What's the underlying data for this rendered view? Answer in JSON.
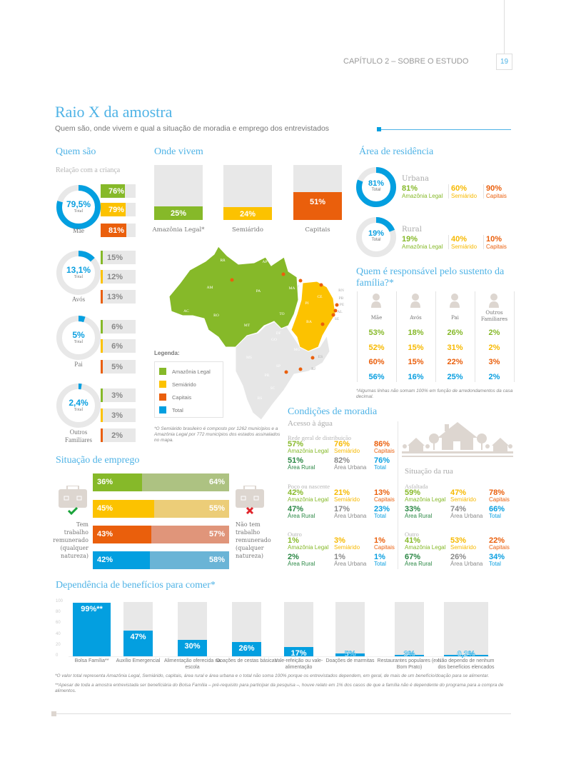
{
  "header": {
    "chapter": "CAPÍTULO 2 – SOBRE O ESTUDO",
    "page": "19"
  },
  "title": "Raio X da amostra",
  "subtitle": "Quem são, onde vivem e qual a situação de moradia e emprego dos entrevistados",
  "colors": {
    "amazonia": "#86b929",
    "semiarido": "#fcc200",
    "capitais": "#ea5f0c",
    "total": "#039fe0",
    "rural": "#2a8744",
    "urbana": "#8a8a8a",
    "accent": "#4fb3e6"
  },
  "quem_sao": {
    "title": "Quem são",
    "subtitle": "Relação com a criança",
    "total_label": "Total",
    "groups": [
      {
        "label": "Mãe",
        "total": "79,5%",
        "total_value": 79.5,
        "bars": [
          "76%",
          "79%",
          "81%"
        ],
        "values": [
          76,
          79,
          81
        ]
      },
      {
        "label": "Avós",
        "total": "13,1%",
        "total_value": 13.1,
        "bars": [
          "15%",
          "12%",
          "13%"
        ],
        "values": [
          15,
          12,
          13
        ]
      },
      {
        "label": "Pai",
        "total": "5%",
        "total_value": 5,
        "bars": [
          "6%",
          "6%",
          "5%"
        ],
        "values": [
          6,
          6,
          5
        ]
      },
      {
        "label": "Outros Familiares",
        "total": "2,4%",
        "total_value": 2.4,
        "bars": [
          "3%",
          "3%",
          "2%"
        ],
        "values": [
          3,
          3,
          2
        ]
      }
    ]
  },
  "onde_vivem": {
    "title": "Onde vivem",
    "bars": [
      {
        "label": "Amazônia Legal*",
        "value_label": "25%",
        "value": 25
      },
      {
        "label": "Semiárido",
        "value_label": "24%",
        "value": 24
      },
      {
        "label": "Capitais",
        "value_label": "51%",
        "value": 51
      }
    ],
    "legend_title": "Legenda:",
    "legend": [
      "Amazônia Legal",
      "Semiárido",
      "Capitais",
      "Total"
    ],
    "states": {
      "green": [
        "RR",
        "AP",
        "AM",
        "PA",
        "MA",
        "AC",
        "RO",
        "TO",
        "MT"
      ],
      "yellow": [
        "CE",
        "PI",
        "BA"
      ],
      "gray": [
        "RN",
        "PB",
        "PE",
        "AL",
        "SE",
        "DF",
        "GO",
        "MG",
        "ES",
        "RJ",
        "MS",
        "SP",
        "PR",
        "SC",
        "RS"
      ]
    },
    "footnote": "*O Semiárido brasileiro é composto por 1262 municípios e a Amazônia Legal por 772 municípios dos estados assinalados no mapa."
  },
  "residencia": {
    "title": "Área de residência",
    "total_label": "Total",
    "rows": [
      {
        "label": "Urbana",
        "total": "81%",
        "total_value": 81,
        "values": [
          "81%",
          "60%",
          "90%"
        ]
      },
      {
        "label": "Rural",
        "total": "19%",
        "total_value": 19,
        "values": [
          "19%",
          "40%",
          "10%"
        ]
      }
    ],
    "regions": [
      "Amazônia Legal",
      "Semiárido",
      "Capitais"
    ]
  },
  "sustento": {
    "title": "Quem é responsável pelo sustento da família?*",
    "columns": [
      {
        "label": "Mãe",
        "values": [
          "53%",
          "52%",
          "60%",
          "56%"
        ]
      },
      {
        "label": "Avós",
        "values": [
          "18%",
          "15%",
          "15%",
          "16%"
        ]
      },
      {
        "label": "Pai",
        "values": [
          "26%",
          "31%",
          "22%",
          "25%"
        ]
      },
      {
        "label": "Outros Familiares",
        "values": [
          "2%",
          "2%",
          "3%",
          "2%"
        ]
      }
    ],
    "footnote": "*Algumas linhas não somam 100% em função de arredondamentos da casa decimal."
  },
  "moradia": {
    "title": "Condições de moradia",
    "agua_title": "Acesso à água",
    "rua_title": "Situação da rua",
    "labels": [
      "Amazônia Legal",
      "Semiárido",
      "Capitais",
      "Área Rural",
      "Área Urbana",
      "Total"
    ],
    "agua": [
      {
        "label": "Rede geral de distribuição",
        "values": [
          "57%",
          "76%",
          "86%",
          "51%",
          "82%",
          "76%"
        ]
      },
      {
        "label": "Poço ou nascente",
        "values": [
          "42%",
          "21%",
          "13%",
          "47%",
          "17%",
          "23%"
        ]
      },
      {
        "label": "Outro",
        "values": [
          "1%",
          "3%",
          "1%",
          "2%",
          "1%",
          "1%"
        ]
      }
    ],
    "rua": [
      {
        "label": "Asfaltada",
        "values": [
          "59%",
          "47%",
          "78%",
          "33%",
          "74%",
          "66%"
        ]
      },
      {
        "label": "Outro",
        "values": [
          "41%",
          "53%",
          "22%",
          "67%",
          "26%",
          "34%"
        ]
      }
    ]
  },
  "emprego": {
    "title": "Situação de emprego",
    "left_label": "Tem trabalho remunerado (qualquer natureza)",
    "right_label": "Não tem trabalho remunerado (qualquer natureza)",
    "rows": [
      {
        "yes": "36%",
        "no": "64%",
        "yes_value": 36
      },
      {
        "yes": "45%",
        "no": "55%",
        "yes_value": 45
      },
      {
        "yes": "43%",
        "no": "57%",
        "yes_value": 43
      },
      {
        "yes": "42%",
        "no": "58%",
        "yes_value": 42
      }
    ]
  },
  "chart_data": {
    "type": "bar",
    "title": "Dependência de benefícios para comer*",
    "ylim": [
      0,
      100
    ],
    "yticks": [
      "100",
      "80",
      "60",
      "40",
      "20",
      "0"
    ],
    "categories": [
      "Bolsa Família**",
      "Auxílio Emergencial",
      "Alimentação oferecida na escola",
      "Doações de cestas básicas",
      "Vale-refeição ou vale-alimentação",
      "Doações de marmitas",
      "Restaurantes populares (ex.: Bom Prato)",
      "Não dependo de nenhum dos benefícios elencados"
    ],
    "values": [
      99,
      47,
      30,
      26,
      17,
      5,
      3,
      0.2
    ],
    "value_labels": [
      "99%**",
      "47%",
      "30%",
      "26%",
      "17%",
      "5%",
      "3%",
      "0,2%"
    ],
    "footnotes": [
      "*O valor total representa Amazônia Legal, Semiárido, capitais, área rural e área urbana e o total não soma 100% porque os entrevistados dependem, em geral, de mais de um benefício/doação para se alimentar.",
      "**Apesar de toda a amostra entrevistada ser beneficiária do Bolsa Família – pré-requisito para participar da pesquisa –, houve relato em 1% dos casos de que a família não é dependente do programa para a compra de alimentos."
    ]
  }
}
